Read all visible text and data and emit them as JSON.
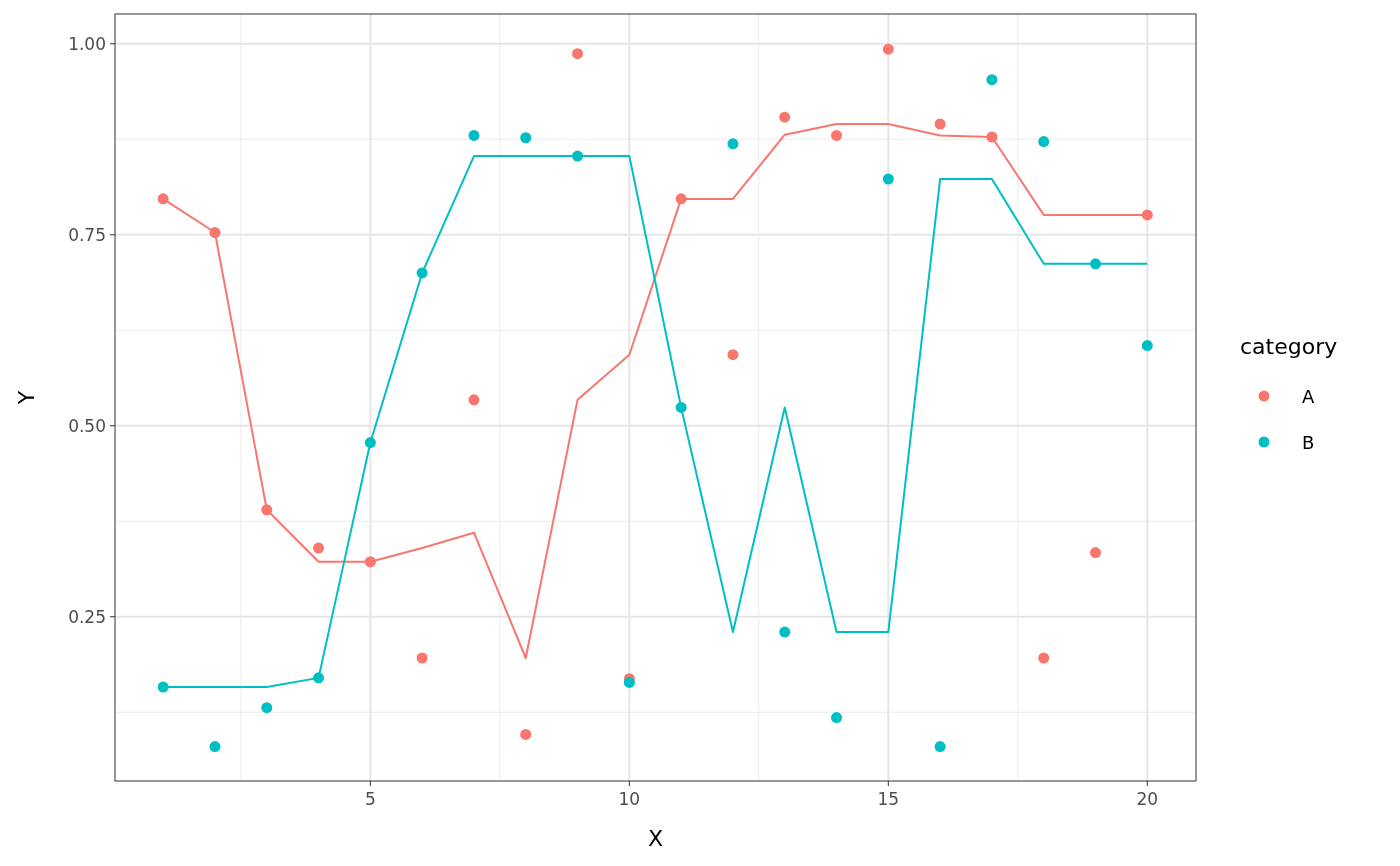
{
  "chart_data": {
    "type": "scatter",
    "xlabel": "X",
    "ylabel": "Y",
    "legend_title": "category",
    "legend": "right",
    "grid": true,
    "marker": "circle",
    "x": [
      1,
      2,
      3,
      4,
      5,
      6,
      7,
      8,
      9,
      10,
      11,
      12,
      13,
      14,
      15,
      16,
      17,
      18,
      19,
      20
    ],
    "xlim": [
      0.07,
      20.94
    ],
    "xticks": [
      5,
      10,
      15,
      20
    ],
    "ylim": [
      0.035,
      1.039
    ],
    "yticks": [
      {
        "value": 0.25,
        "label": "0.25"
      },
      {
        "value": 0.5,
        "label": "0.50"
      },
      {
        "value": 0.75,
        "label": "0.75"
      },
      {
        "value": 1,
        "label": "1.00"
      }
    ],
    "series": [
      {
        "type": "line",
        "color": "#f8766d",
        "marker": "none",
        "values": [
          0.797,
          0.753,
          0.39,
          0.322,
          0.322,
          0.34,
          0.36,
          0.196,
          0.534,
          0.593,
          0.797,
          0.797,
          0.881,
          0.895,
          0.895,
          0.88,
          0.878,
          0.776,
          0.776,
          0.776
        ]
      },
      {
        "type": "line",
        "color": "#00bfc4",
        "marker": "none",
        "values": [
          0.158,
          0.158,
          0.158,
          0.17,
          0.478,
          0.7,
          0.853,
          0.853,
          0.853,
          0.853,
          0.524,
          0.23,
          0.524,
          0.23,
          0.23,
          0.823,
          0.823,
          0.712,
          0.712,
          0.712
        ]
      },
      {
        "name": "A",
        "color": "#f8766d",
        "values": [
          0.797,
          0.753,
          0.39,
          0.34,
          0.322,
          0.196,
          0.534,
          0.096,
          0.987,
          0.169,
          0.797,
          0.593,
          0.904,
          0.88,
          0.993,
          0.895,
          0.878,
          0.196,
          0.334,
          0.776
        ]
      },
      {
        "name": "B",
        "color": "#00bfc4",
        "values": [
          0.158,
          0.08,
          0.131,
          0.17,
          0.478,
          0.7,
          0.88,
          0.877,
          0.853,
          0.164,
          0.524,
          0.869,
          0.23,
          0.118,
          0.823,
          0.08,
          0.953,
          0.872,
          0.712,
          0.605
        ]
      }
    ]
  }
}
